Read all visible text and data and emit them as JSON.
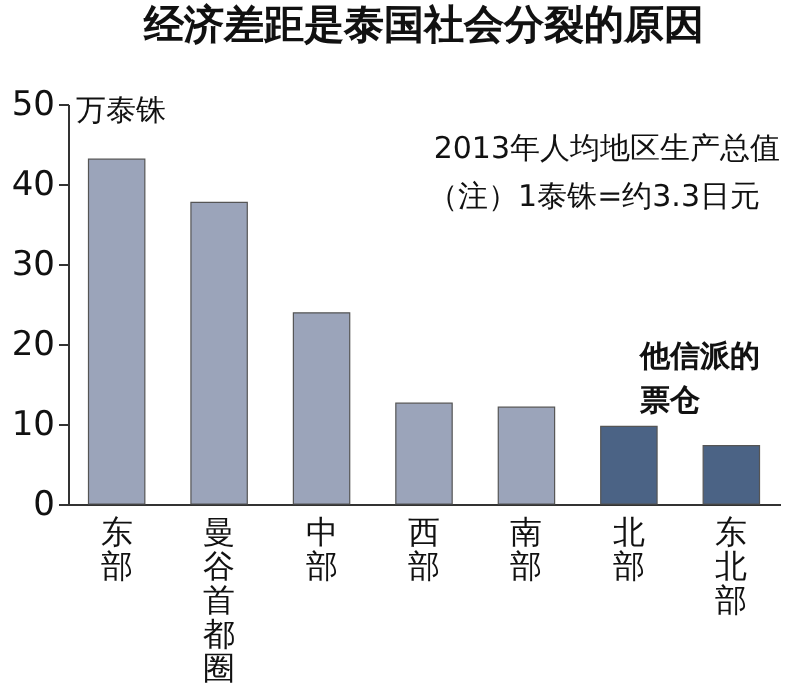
{
  "chart_data": {
    "type": "bar",
    "title": "经济差距是泰国社会分裂的原因",
    "ylabel": "万泰铢",
    "categories": [
      "东部",
      "曼谷首都圈",
      "中部",
      "西部",
      "南部",
      "北部",
      "东北部"
    ],
    "values": [
      43.1,
      37.7,
      23.9,
      12.6,
      12.1,
      9.7,
      7.3
    ],
    "colors": [
      "#9ba4ba",
      "#9ba4ba",
      "#9ba4ba",
      "#9ba4ba",
      "#9ba4ba",
      "#4b6385",
      "#4b6385"
    ],
    "ylim": [
      0,
      50
    ],
    "yticks": [
      0,
      10,
      20,
      30,
      40,
      50
    ],
    "grid": false,
    "annotations": [
      "2013年人均地区生产总值",
      "（注）1泰铢=约3.3日元",
      "他信派的票仓"
    ]
  }
}
